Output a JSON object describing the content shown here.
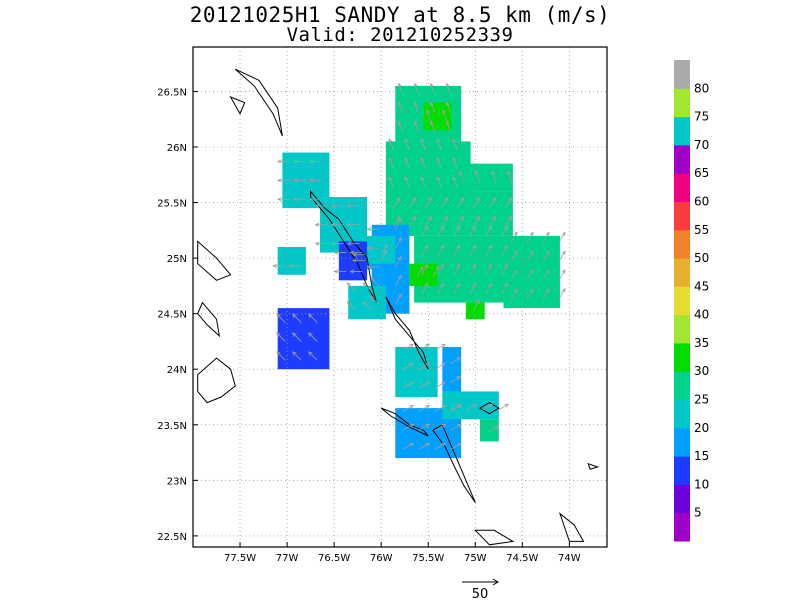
{
  "title": {
    "line1": "20121025H1 SANDY at 8.5 km (m/s)",
    "line2": "Valid: 201210252339"
  },
  "map": {
    "lon_range": [
      -78.0,
      -73.6
    ],
    "lat_range": [
      22.4,
      26.9
    ],
    "lon_ticks": [
      {
        "v": -77.5,
        "label": "77.5W"
      },
      {
        "v": -77.0,
        "label": "77W"
      },
      {
        "v": -76.5,
        "label": "76.5W"
      },
      {
        "v": -76.0,
        "label": "76W"
      },
      {
        "v": -75.5,
        "label": "75.5W"
      },
      {
        "v": -75.0,
        "label": "75W"
      },
      {
        "v": -74.5,
        "label": "74.5W"
      },
      {
        "v": -74.0,
        "label": "74W"
      }
    ],
    "lat_ticks": [
      {
        "v": 22.5,
        "label": "22.5N"
      },
      {
        "v": 23.0,
        "label": "23N"
      },
      {
        "v": 23.5,
        "label": "23.5N"
      },
      {
        "v": 24.0,
        "label": "24N"
      },
      {
        "v": 24.5,
        "label": "24.5N"
      },
      {
        "v": 25.0,
        "label": "25N"
      },
      {
        "v": 25.5,
        "label": "25.5N"
      },
      {
        "v": 26.0,
        "label": "26N"
      },
      {
        "v": 26.5,
        "label": "26.5N"
      }
    ],
    "grid": "dotted",
    "reference_vector_label": "50"
  },
  "colorbar": {
    "levels": [
      "5",
      "10",
      "15",
      "20",
      "25",
      "30",
      "35",
      "40",
      "45",
      "50",
      "55",
      "60",
      "65",
      "70",
      "75",
      "80"
    ],
    "colors": [
      "#a000c8",
      "#6e00dc",
      "#1e3cff",
      "#00a0ff",
      "#00c8c8",
      "#00d28c",
      "#00dc00",
      "#a0e632",
      "#e6dc32",
      "#e6af2d",
      "#f08228",
      "#fa3c3c",
      "#f00082",
      "#a000c8",
      "#00c8c8",
      "#a0e632",
      "#aaaaaa"
    ]
  },
  "chart_data": {
    "type": "heatmap",
    "title": "20121025H1 SANDY at 8.5 km (m/s)",
    "subtitle": "Valid: 201210252339",
    "x_range": [
      -78.0,
      -73.6
    ],
    "y_range": [
      22.4,
      26.9
    ],
    "regions": [
      {
        "lon": [
          -75.85,
          -75.15
        ],
        "lat": [
          26.05,
          26.55
        ],
        "speed": 27
      },
      {
        "lon": [
          -75.55,
          -75.25
        ],
        "lat": [
          26.15,
          26.4
        ],
        "speed": 33
      },
      {
        "lon": [
          -75.95,
          -75.05
        ],
        "lat": [
          25.55,
          26.05
        ],
        "speed": 26
      },
      {
        "lon": [
          -75.95,
          -74.6
        ],
        "lat": [
          25.2,
          25.6
        ],
        "speed": 26
      },
      {
        "lon": [
          -75.2,
          -74.6
        ],
        "lat": [
          25.6,
          25.85
        ],
        "speed": 25
      },
      {
        "lon": [
          -74.7,
          -74.1
        ],
        "lat": [
          24.55,
          25.2
        ],
        "speed": 25
      },
      {
        "lon": [
          -75.65,
          -74.7
        ],
        "lat": [
          24.6,
          25.2
        ],
        "speed": 29
      },
      {
        "lon": [
          -75.1,
          -74.9
        ],
        "lat": [
          24.45,
          24.6
        ],
        "speed": 33
      },
      {
        "lon": [
          -75.7,
          -75.4
        ],
        "lat": [
          24.75,
          24.95
        ],
        "speed": 33
      },
      {
        "lon": [
          -76.1,
          -75.7
        ],
        "lat": [
          24.5,
          25.3
        ],
        "speed": 19
      },
      {
        "lon": [
          -76.35,
          -75.95
        ],
        "lat": [
          24.45,
          24.75
        ],
        "speed": 20
      },
      {
        "lon": [
          -76.25,
          -75.95
        ],
        "lat": [
          24.9,
          25.15
        ],
        "speed": 16
      },
      {
        "lon": [
          -77.05,
          -76.55
        ],
        "lat": [
          25.45,
          25.95
        ],
        "speed": 70
      },
      {
        "lon": [
          -76.65,
          -76.15
        ],
        "lat": [
          25.05,
          25.55
        ],
        "speed": 70
      },
      {
        "lon": [
          -76.25,
          -75.85
        ],
        "lat": [
          24.95,
          25.2
        ],
        "speed": 70
      },
      {
        "lon": [
          -77.1,
          -76.8
        ],
        "lat": [
          24.85,
          25.1
        ],
        "speed": 70
      },
      {
        "lon": [
          -76.45,
          -76.15
        ],
        "lat": [
          24.8,
          25.15
        ],
        "speed": 14
      },
      {
        "lon": [
          -77.1,
          -76.55
        ],
        "lat": [
          24.0,
          24.55
        ],
        "speed": 13
      },
      {
        "lon": [
          -75.85,
          -75.4
        ],
        "lat": [
          23.75,
          24.2
        ],
        "speed": 23
      },
      {
        "lon": [
          -75.35,
          -75.15
        ],
        "lat": [
          23.8,
          24.2
        ],
        "speed": 18
      },
      {
        "lon": [
          -75.85,
          -75.15
        ],
        "lat": [
          23.2,
          23.65
        ],
        "speed": 18
      },
      {
        "lon": [
          -75.35,
          -74.75
        ],
        "lat": [
          23.55,
          23.8
        ],
        "speed": 20
      },
      {
        "lon": [
          -74.95,
          -74.75
        ],
        "lat": [
          23.35,
          23.55
        ],
        "speed": 25
      }
    ]
  }
}
